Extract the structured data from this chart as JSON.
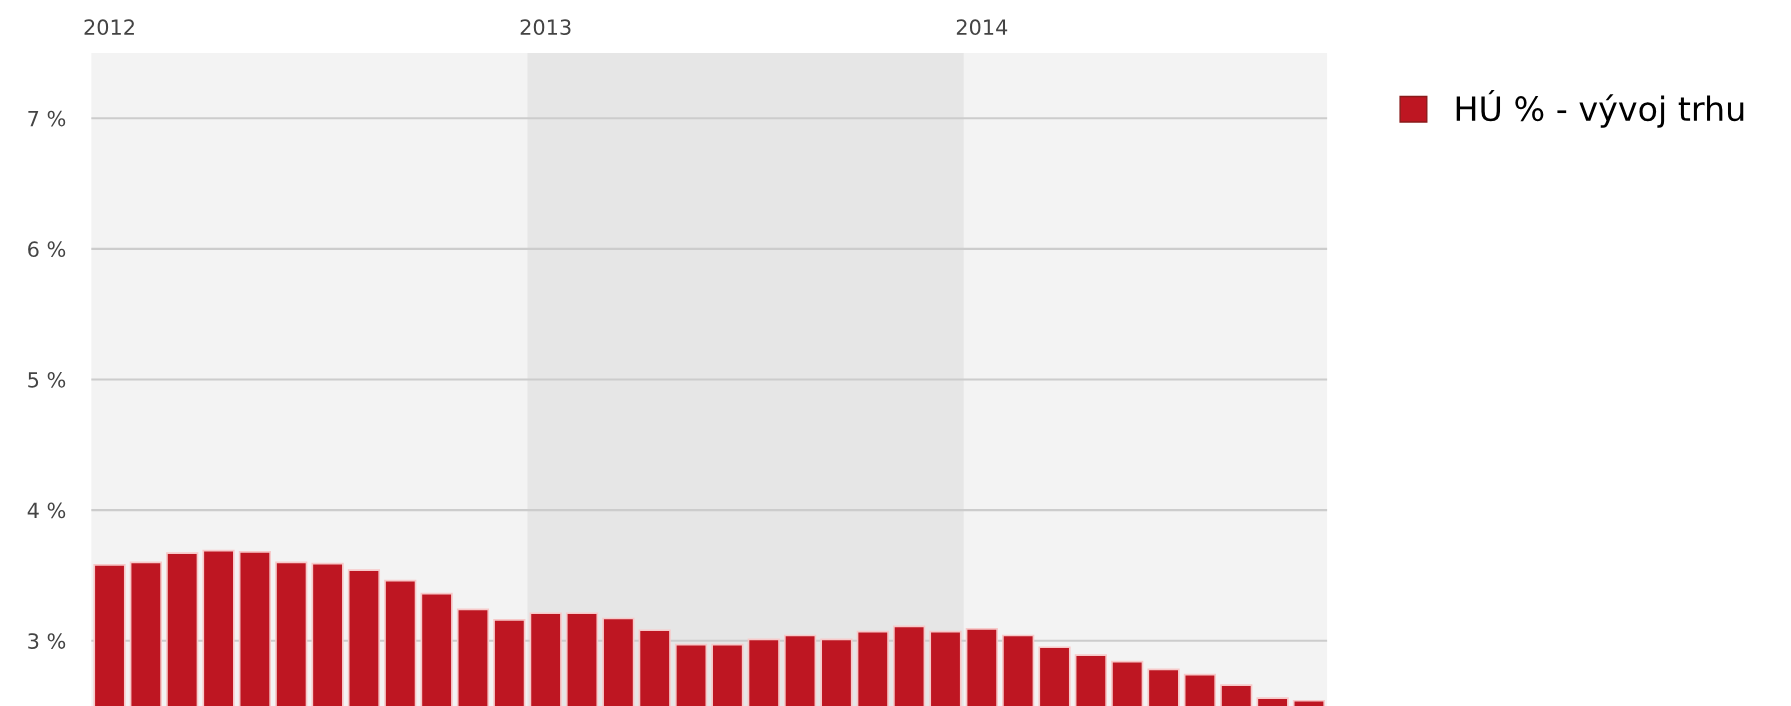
{
  "chart_data": {
    "type": "bar",
    "categories": [
      "2012",
      null,
      null,
      null,
      null,
      null,
      null,
      null,
      null,
      null,
      null,
      null,
      "2013",
      null,
      null,
      null,
      null,
      null,
      null,
      null,
      null,
      null,
      null,
      null,
      "2014",
      null,
      null,
      null,
      null,
      null,
      null,
      null,
      null,
      null
    ],
    "series": [
      {
        "name": "HÚ % - vývoj trhu",
        "color": "#be1622",
        "values": [
          3.58,
          3.6,
          3.67,
          3.69,
          3.68,
          3.6,
          3.59,
          3.54,
          3.46,
          3.36,
          3.24,
          3.16,
          3.21,
          3.21,
          3.17,
          3.08,
          2.97,
          2.97,
          3.01,
          3.04,
          3.01,
          3.07,
          3.11,
          3.07,
          3.09,
          3.04,
          2.95,
          2.89,
          2.84,
          2.78,
          2.74,
          2.66,
          2.56,
          2.54
        ]
      }
    ],
    "ylim": [
      2.5,
      7.5
    ],
    "yticks": [
      {
        "value": 3,
        "label": "3 %"
      },
      {
        "value": 4,
        "label": "4 %"
      },
      {
        "value": 5,
        "label": "5 %"
      },
      {
        "value": 6,
        "label": "6 %"
      },
      {
        "value": 7,
        "label": "7 %"
      }
    ],
    "bands": [
      {
        "axis": "x",
        "from": "2013",
        "to": "2014",
        "color": "#e6e6e6"
      }
    ],
    "grid": "y",
    "legend": "top right"
  }
}
